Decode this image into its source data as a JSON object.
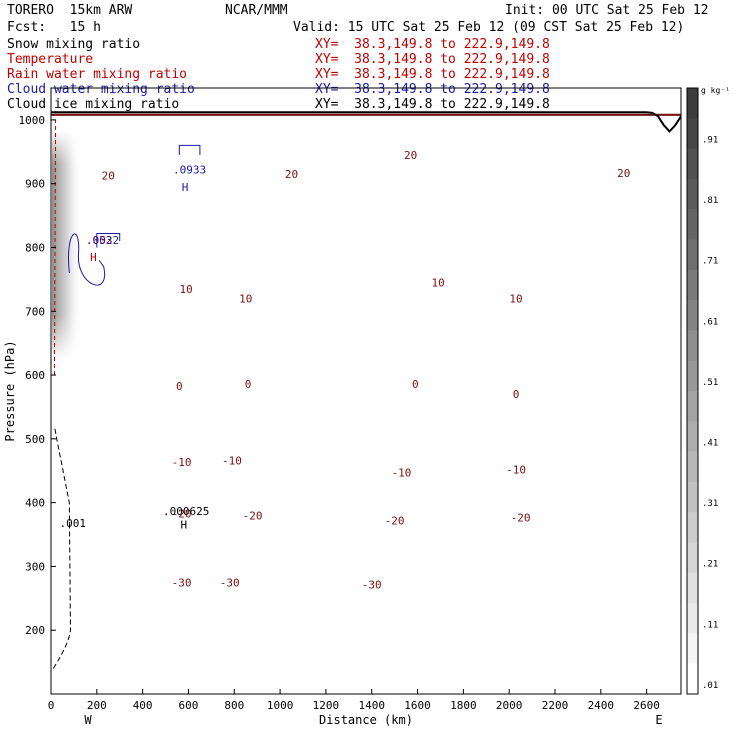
{
  "header": {
    "model": "TORERO  15km ARW",
    "center": "NCAR/MMM",
    "init": "Init: 00 UTC Sat 25 Feb 12",
    "fcst": "Fcst:   15 h",
    "valid": "Valid: 15 UTC Sat 25 Feb 12 (09 CST Sat 25 Feb 12)"
  },
  "fields": [
    {
      "name": "Snow mixing ratio",
      "xy": "XY=  38.3,149.8 to 222.9,149.8",
      "color": "#000000"
    },
    {
      "name": "Temperature",
      "xy": "XY=  38.3,149.8 to 222.9,149.8",
      "color": "#c00000"
    },
    {
      "name": "Rain water mixing ratio",
      "xy": "XY=  38.3,149.8 to 222.9,149.8",
      "color": "#c00000"
    },
    {
      "name": "Cloud water mixing ratio",
      "xy": "XY=  38.3,149.8 to 222.9,149.8",
      "color": "#1a1aa6"
    },
    {
      "name": "Cloud ice mixing ratio",
      "xy": "XY=  38.3,149.8 to 222.9,149.8",
      "color": "#000000"
    }
  ],
  "chart_data": {
    "type": "line",
    "xlabel": "Distance (km)",
    "ylabel": "Pressure (hPa)",
    "xlim": [
      0,
      2750
    ],
    "ylim": [
      1050,
      100
    ],
    "x_ticks": [
      0,
      200,
      400,
      600,
      800,
      1000,
      1200,
      1400,
      1600,
      1800,
      2000,
      2200,
      2400,
      2600
    ],
    "y_ticks": [
      200,
      300,
      400,
      500,
      600,
      700,
      800,
      900,
      1000
    ],
    "left_label": "W",
    "right_label": "E",
    "colorbar": {
      "units": "g kg⁻¹",
      "labels": [
        ".91",
        ".81",
        ".71",
        ".61",
        ".51",
        ".41",
        ".31",
        ".21",
        ".11",
        ".01"
      ],
      "color_min": "#ffffff",
      "color_max": "#3c3c3c"
    },
    "temperature_contour_labels": [
      {
        "text": "-30",
        "x": 570,
        "p": 275
      },
      {
        "text": "-30",
        "x": 780,
        "p": 275
      },
      {
        "text": "-30",
        "x": 1400,
        "p": 272
      },
      {
        "text": "-20",
        "x": 570,
        "p": 383
      },
      {
        "text": "-20",
        "x": 880,
        "p": 380
      },
      {
        "text": "-20",
        "x": 1500,
        "p": 372
      },
      {
        "text": "-20",
        "x": 2050,
        "p": 377
      },
      {
        "text": "-10",
        "x": 570,
        "p": 464
      },
      {
        "text": "-10",
        "x": 790,
        "p": 466
      },
      {
        "text": "-10",
        "x": 1530,
        "p": 447
      },
      {
        "text": "-10",
        "x": 2030,
        "p": 452
      },
      {
        "text": "0",
        "x": 560,
        "p": 583
      },
      {
        "text": "0",
        "x": 860,
        "p": 586
      },
      {
        "text": "0",
        "x": 1590,
        "p": 586
      },
      {
        "text": "0",
        "x": 2030,
        "p": 570
      },
      {
        "text": "10",
        "x": 590,
        "p": 735
      },
      {
        "text": "10",
        "x": 850,
        "p": 720
      },
      {
        "text": "10",
        "x": 1690,
        "p": 745
      },
      {
        "text": "10",
        "x": 2030,
        "p": 720
      },
      {
        "text": "20",
        "x": 250,
        "p": 913
      },
      {
        "text": "20",
        "x": 1050,
        "p": 915
      },
      {
        "text": "20",
        "x": 1570,
        "p": 945
      },
      {
        "text": "20",
        "x": 2500,
        "p": 917
      }
    ],
    "marker_labels": [
      {
        "text": "H",
        "x": 580,
        "p": 366,
        "color": "#000000"
      },
      {
        "text": ".000625",
        "x": 590,
        "p": 387,
        "color": "#000000"
      },
      {
        "text": ".001",
        "x": 95,
        "p": 368,
        "color": "#000000"
      },
      {
        "text": "H",
        "x": 185,
        "p": 785,
        "color": "#c00000"
      },
      {
        "text": ".052",
        "x": 210,
        "p": 812,
        "color": "#c00000"
      },
      {
        "text": ".0032",
        "x": 225,
        "p": 812,
        "color": "#1a1aa6"
      },
      {
        "text": "H",
        "x": 585,
        "p": 895,
        "color": "#1a1aa6"
      },
      {
        "text": ".0933",
        "x": 605,
        "p": 922,
        "color": "#1a1aa6"
      }
    ],
    "ground_pressure": 1012
  }
}
